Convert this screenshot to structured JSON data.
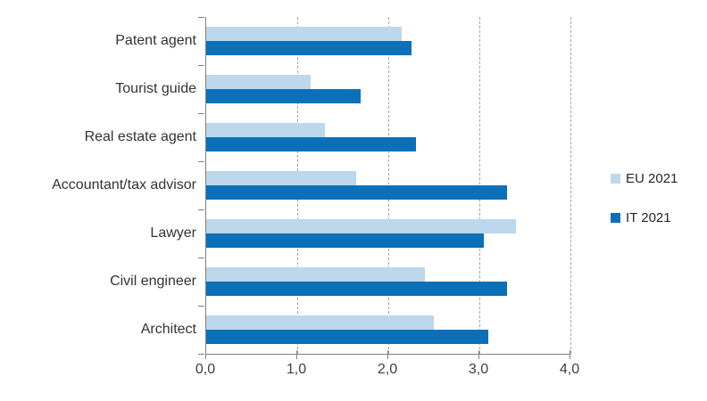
{
  "chart_data": {
    "type": "bar",
    "orientation": "horizontal",
    "title": "",
    "xlabel": "",
    "ylabel": "",
    "categories": [
      "Patent agent",
      "Tourist guide",
      "Real estate agent",
      "Accountant/tax advisor",
      "Lawyer",
      "Civil engineer",
      "Architect"
    ],
    "series": [
      {
        "name": "EU 2021",
        "color": "#BDD7EC",
        "values": [
          2.15,
          1.15,
          1.3,
          1.65,
          3.4,
          2.4,
          2.5
        ]
      },
      {
        "name": "IT 2021",
        "color": "#0B70B8",
        "values": [
          2.25,
          1.7,
          2.3,
          3.3,
          3.05,
          3.3,
          3.1
        ]
      }
    ],
    "xlim": [
      0,
      4
    ],
    "x_tick_values": [
      0,
      1,
      2,
      3,
      4
    ],
    "x_tick_labels": [
      "0,0",
      "1,0",
      "2,0",
      "3,0",
      "4,0"
    ],
    "grid": "vertical-dashed-at-whole-units",
    "legend_position": "right"
  },
  "colors": {
    "axis": "#808080",
    "gridline": "#a6a6a6",
    "category_text": "#333333",
    "tick_text": "#404040",
    "background": "#ffffff"
  }
}
